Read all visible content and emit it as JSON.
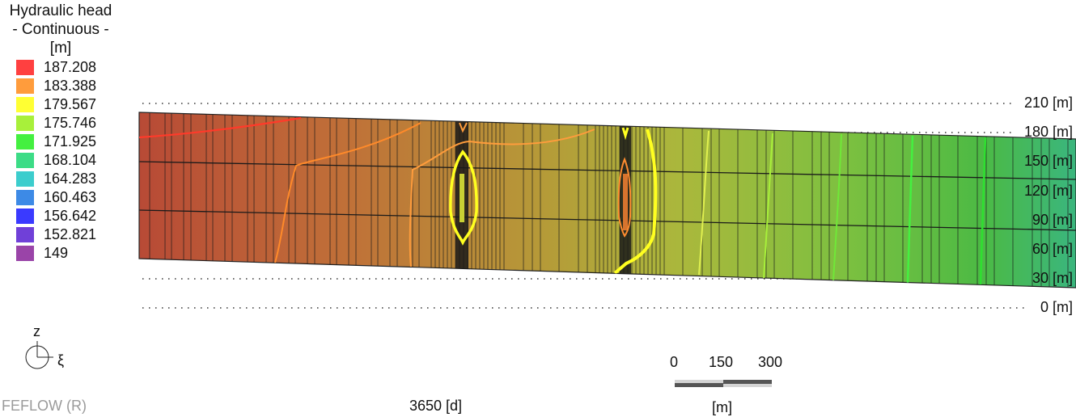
{
  "legend": {
    "title": "Hydraulic head",
    "subtitle": "- Continuous -",
    "unit": "[m]",
    "entries": [
      {
        "value": "187.208",
        "color": "#ff4040"
      },
      {
        "value": "183.388",
        "color": "#ff9c3c"
      },
      {
        "value": "179.567",
        "color": "#ffff33"
      },
      {
        "value": "175.746",
        "color": "#a8f03a"
      },
      {
        "value": "171.925",
        "color": "#44f040"
      },
      {
        "value": "168.104",
        "color": "#3cdc86"
      },
      {
        "value": "164.283",
        "color": "#3ccdcd"
      },
      {
        "value": "160.463",
        "color": "#3d8ae6"
      },
      {
        "value": "156.642",
        "color": "#3a3aff"
      },
      {
        "value": "152.821",
        "color": "#7040d8"
      },
      {
        "value": "149",
        "color": "#9a44a8"
      }
    ]
  },
  "elevation_labels": [
    "210 [m]",
    "180 [m]",
    "150 [m]",
    "120 [m]",
    "90 [m]",
    "60 [m]",
    "30 [m]",
    "0 [m]"
  ],
  "orientation": {
    "vertical": "z",
    "horizontal": "ξ"
  },
  "scale_bar": {
    "ticks": [
      "0",
      "150",
      "300"
    ],
    "unit": "[m]"
  },
  "footer": {
    "software": "FEFLOW (R)",
    "time": "3650 [d]"
  }
}
